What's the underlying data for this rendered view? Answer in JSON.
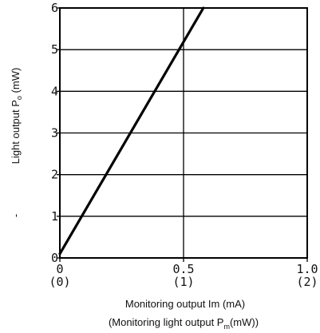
{
  "chart_data": {
    "type": "line",
    "series": [
      {
        "x": [
          0,
          0.58
        ],
        "y": [
          0.1,
          6.0
        ]
      }
    ],
    "xlim": [
      0,
      1.0
    ],
    "ylim": [
      0,
      6
    ],
    "x_ticks": [
      0,
      0.5,
      1.0
    ],
    "x_tick_labels": [
      "0",
      "0.5",
      "1.0"
    ],
    "x_tick_sublabels": [
      "(0)",
      "(1)",
      "(2)"
    ],
    "y_ticks": [
      0,
      1,
      2,
      3,
      4,
      5,
      6
    ],
    "y_tick_labels": [
      "0",
      "1",
      "2",
      "3",
      "4",
      "5",
      "6"
    ],
    "xlabel": "Monitoring output Im (mA)",
    "xlabel2_prefix": "(Monitoring light output P",
    "xlabel2_sub": "m",
    "xlabel2_suffix": "(mW))",
    "ylabel_prefix": "Light output P",
    "ylabel_sub": "o",
    "ylabel_suffix": " (mW)",
    "ylabel_dash": "-",
    "grid": true,
    "line_color": "#000000"
  }
}
